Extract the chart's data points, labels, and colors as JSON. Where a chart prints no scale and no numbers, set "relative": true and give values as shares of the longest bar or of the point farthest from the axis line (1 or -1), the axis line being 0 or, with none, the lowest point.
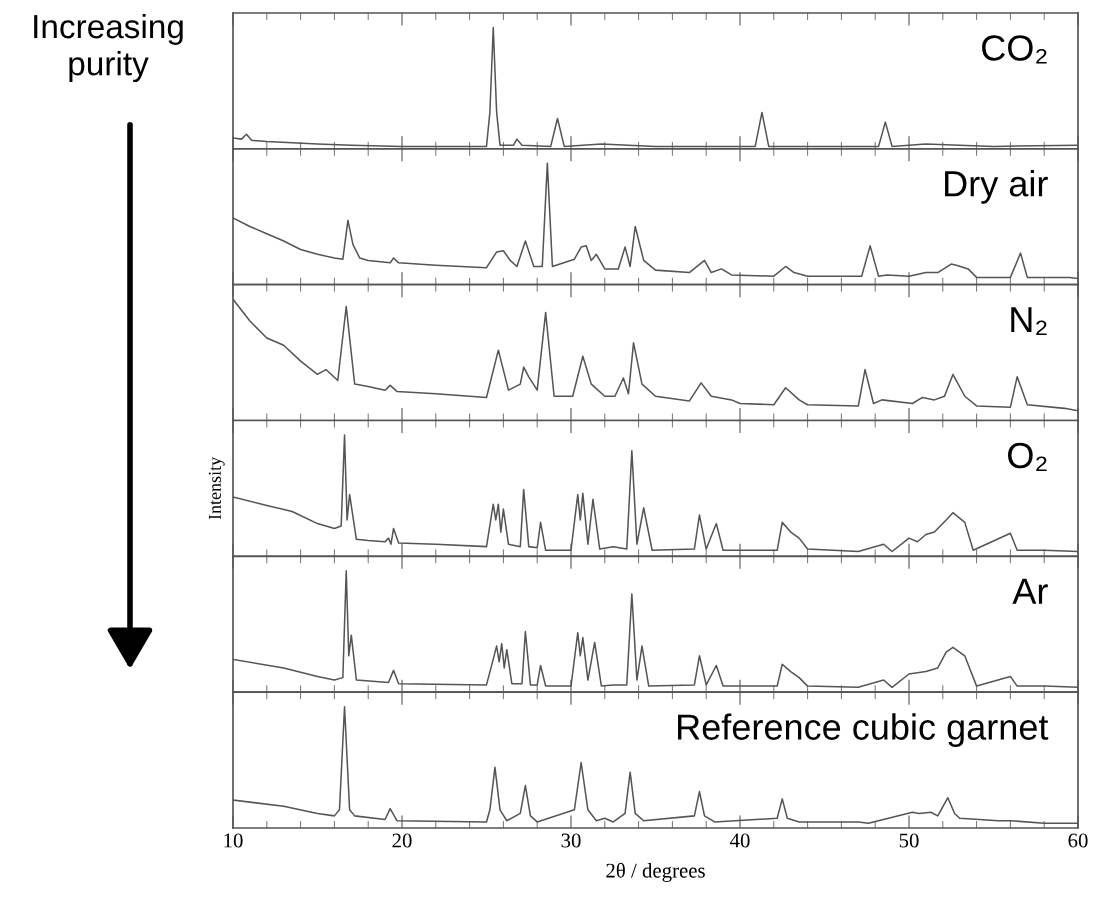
{
  "chart_data": [
    {
      "type": "line",
      "relative": true,
      "xlim": [
        10,
        60
      ],
      "xticks": [
        10,
        {
          "value": 12,
          "label": null
        },
        {
          "value": 14,
          "label": null
        },
        {
          "value": 16,
          "label": null
        },
        {
          "value": 18,
          "label": null
        },
        20,
        {
          "value": 22,
          "label": null
        },
        {
          "value": 24,
          "label": null
        },
        {
          "value": 26,
          "label": null
        },
        {
          "value": 28,
          "label": null
        },
        30,
        {
          "value": 32,
          "label": null
        },
        {
          "value": 34,
          "label": null
        },
        {
          "value": 36,
          "label": null
        },
        {
          "value": 38,
          "label": null
        },
        40,
        {
          "value": 42,
          "label": null
        },
        {
          "value": 44,
          "label": null
        },
        {
          "value": 46,
          "label": null
        },
        {
          "value": 48,
          "label": null
        },
        50,
        {
          "value": 52,
          "label": null
        },
        {
          "value": 54,
          "label": null
        },
        {
          "value": 56,
          "label": null
        },
        {
          "value": 58,
          "label": null
        },
        60
      ],
      "tick_labels": false,
      "annotations": [
        "Increasing purity"
      ],
      "series": [
        {
          "name": "CO₂",
          "color": "#555555",
          "x": [
            10,
            10.5,
            10.8,
            11.1,
            12,
            13.5,
            15,
            17,
            20,
            23,
            25.0,
            25.2,
            25.4,
            25.6,
            25.8,
            26.6,
            26.8,
            27.1,
            28.8,
            29.2,
            29.6,
            31.8,
            35,
            38,
            40.9,
            41.3,
            41.7,
            44,
            48.2,
            48.6,
            49,
            51,
            55,
            60
          ],
          "values": [
            0.09,
            0.08,
            0.12,
            0.07,
            0.06,
            0.05,
            0.04,
            0.03,
            0.02,
            0.02,
            0.02,
            0.3,
            1.0,
            0.3,
            0.03,
            0.03,
            0.08,
            0.03,
            0.02,
            0.25,
            0.02,
            0.04,
            0.02,
            0.02,
            0.02,
            0.3,
            0.02,
            0.02,
            0.02,
            0.22,
            0.02,
            0.04,
            0.02,
            0.03
          ]
        }
      ]
    },
    {
      "type": "line",
      "relative": true,
      "xlim": [
        10,
        60
      ],
      "xticks": [
        10,
        {
          "value": 12,
          "label": null
        },
        {
          "value": 14,
          "label": null
        },
        {
          "value": 16,
          "label": null
        },
        {
          "value": 18,
          "label": null
        },
        20,
        {
          "value": 22,
          "label": null
        },
        {
          "value": 24,
          "label": null
        },
        {
          "value": 26,
          "label": null
        },
        {
          "value": 28,
          "label": null
        },
        30,
        {
          "value": 32,
          "label": null
        },
        {
          "value": 34,
          "label": null
        },
        {
          "value": 36,
          "label": null
        },
        {
          "value": 38,
          "label": null
        },
        40,
        {
          "value": 42,
          "label": null
        },
        {
          "value": 44,
          "label": null
        },
        {
          "value": 46,
          "label": null
        },
        {
          "value": 48,
          "label": null
        },
        50,
        {
          "value": 52,
          "label": null
        },
        {
          "value": 54,
          "label": null
        },
        {
          "value": 56,
          "label": null
        },
        {
          "value": 58,
          "label": null
        },
        60
      ],
      "tick_labels": false,
      "series": [
        {
          "name": "Dry air",
          "color": "#555555",
          "x": [
            10,
            11,
            12,
            13,
            14,
            15,
            16,
            16.5,
            16.8,
            17.1,
            17.5,
            18,
            19.3,
            19.5,
            19.8,
            22,
            25,
            25.6,
            26,
            26.4,
            26.8,
            27.3,
            27.8,
            28.3,
            28.6,
            28.9,
            30.2,
            30.6,
            30.9,
            31.2,
            31.5,
            32,
            32.8,
            33.2,
            33.5,
            33.8,
            34.3,
            35,
            37,
            37.9,
            38.3,
            38.9,
            39.5,
            42,
            42.7,
            43.2,
            44,
            47.2,
            47.7,
            48.2,
            48.7,
            50,
            51,
            51.7,
            52.5,
            52.8,
            53.5,
            54,
            56,
            56.6,
            57,
            59.5,
            60
          ],
          "values": [
            0.55,
            0.48,
            0.42,
            0.36,
            0.29,
            0.25,
            0.22,
            0.21,
            0.53,
            0.33,
            0.22,
            0.2,
            0.18,
            0.22,
            0.18,
            0.16,
            0.14,
            0.27,
            0.28,
            0.2,
            0.15,
            0.36,
            0.15,
            0.15,
            1.0,
            0.15,
            0.21,
            0.31,
            0.32,
            0.2,
            0.25,
            0.13,
            0.13,
            0.31,
            0.15,
            0.48,
            0.2,
            0.12,
            0.1,
            0.2,
            0.1,
            0.13,
            0.08,
            0.07,
            0.15,
            0.1,
            0.07,
            0.07,
            0.32,
            0.07,
            0.08,
            0.07,
            0.1,
            0.1,
            0.17,
            0.16,
            0.13,
            0.06,
            0.06,
            0.26,
            0.06,
            0.06,
            0.05
          ]
        }
      ]
    },
    {
      "type": "line",
      "relative": true,
      "xlim": [
        10,
        60
      ],
      "xticks": [
        10,
        {
          "value": 12,
          "label": null
        },
        {
          "value": 14,
          "label": null
        },
        {
          "value": 16,
          "label": null
        },
        {
          "value": 18,
          "label": null
        },
        20,
        {
          "value": 22,
          "label": null
        },
        {
          "value": 24,
          "label": null
        },
        {
          "value": 26,
          "label": null
        },
        {
          "value": 28,
          "label": null
        },
        30,
        {
          "value": 32,
          "label": null
        },
        {
          "value": 34,
          "label": null
        },
        {
          "value": 36,
          "label": null
        },
        {
          "value": 38,
          "label": null
        },
        40,
        {
          "value": 42,
          "label": null
        },
        {
          "value": 44,
          "label": null
        },
        {
          "value": 46,
          "label": null
        },
        {
          "value": 48,
          "label": null
        },
        50,
        {
          "value": 52,
          "label": null
        },
        {
          "value": 54,
          "label": null
        },
        {
          "value": 56,
          "label": null
        },
        {
          "value": 58,
          "label": null
        },
        60
      ],
      "tick_labels": false,
      "series": [
        {
          "name": "N₂",
          "color": "#555555",
          "x": [
            10,
            11,
            12,
            13,
            14,
            15,
            15.5,
            16.2,
            16.7,
            17.2,
            18,
            19.0,
            19.3,
            19.7,
            22,
            25,
            25.7,
            26.3,
            27.0,
            27.2,
            27.5,
            28,
            28.5,
            29,
            30.1,
            30.7,
            31.2,
            32,
            32.6,
            33.1,
            33.4,
            33.7,
            34.2,
            35,
            37,
            37.7,
            38.3,
            39.5,
            40,
            42,
            42.7,
            43.5,
            44,
            47,
            47.4,
            47.9,
            48.4,
            50.2,
            50.8,
            51.5,
            52.1,
            52.6,
            53.3,
            54,
            56,
            56.4,
            57,
            59.2,
            60
          ],
          "values": [
            1.0,
            0.82,
            0.68,
            0.62,
            0.49,
            0.38,
            0.42,
            0.33,
            0.94,
            0.3,
            0.28,
            0.25,
            0.29,
            0.24,
            0.22,
            0.19,
            0.58,
            0.25,
            0.3,
            0.44,
            0.36,
            0.25,
            0.89,
            0.2,
            0.2,
            0.53,
            0.3,
            0.2,
            0.2,
            0.35,
            0.22,
            0.64,
            0.3,
            0.2,
            0.16,
            0.31,
            0.2,
            0.17,
            0.14,
            0.13,
            0.27,
            0.17,
            0.13,
            0.12,
            0.42,
            0.14,
            0.17,
            0.14,
            0.19,
            0.17,
            0.2,
            0.38,
            0.2,
            0.12,
            0.11,
            0.36,
            0.13,
            0.1,
            0.08
          ]
        }
      ]
    },
    {
      "type": "line",
      "relative": true,
      "xlim": [
        10,
        60
      ],
      "xticks": [
        10,
        {
          "value": 12,
          "label": null
        },
        {
          "value": 14,
          "label": null
        },
        {
          "value": 16,
          "label": null
        },
        {
          "value": 18,
          "label": null
        },
        20,
        {
          "value": 22,
          "label": null
        },
        {
          "value": 24,
          "label": null
        },
        {
          "value": 26,
          "label": null
        },
        {
          "value": 28,
          "label": null
        },
        30,
        {
          "value": 32,
          "label": null
        },
        {
          "value": 34,
          "label": null
        },
        {
          "value": 36,
          "label": null
        },
        {
          "value": 38,
          "label": null
        },
        40,
        {
          "value": 42,
          "label": null
        },
        {
          "value": 44,
          "label": null
        },
        {
          "value": 46,
          "label": null
        },
        {
          "value": 48,
          "label": null
        },
        50,
        {
          "value": 52,
          "label": null
        },
        {
          "value": 54,
          "label": null
        },
        {
          "value": 56,
          "label": null
        },
        {
          "value": 58,
          "label": null
        },
        60
      ],
      "tick_labels": false,
      "ylabel": "Intensity",
      "series": [
        {
          "name": "O₂",
          "color": "#555555",
          "x": [
            10,
            12,
            13.5,
            15,
            16,
            16.4,
            16.6,
            16.75,
            16.9,
            17.3,
            18,
            19,
            19.2,
            19.35,
            19.5,
            19.8,
            22,
            25,
            25.4,
            25.55,
            25.7,
            25.85,
            26,
            26.3,
            27.0,
            27.2,
            27.5,
            28.0,
            28.2,
            28.5,
            30,
            30.4,
            30.55,
            30.7,
            31.0,
            31.3,
            31.7,
            32.5,
            33.3,
            33.6,
            33.9,
            34.3,
            34.8,
            37.3,
            37.6,
            38.0,
            38.6,
            39,
            42.2,
            42.5,
            43,
            43.5,
            44,
            47,
            48.5,
            49,
            50,
            50.5,
            51,
            51.5,
            52.2,
            52.6,
            53.3,
            53.8,
            56,
            56.4,
            58,
            60
          ],
          "values": [
            0.49,
            0.42,
            0.37,
            0.27,
            0.23,
            0.25,
            1.0,
            0.3,
            0.51,
            0.14,
            0.13,
            0.12,
            0.15,
            0.1,
            0.23,
            0.11,
            0.1,
            0.08,
            0.43,
            0.3,
            0.43,
            0.2,
            0.39,
            0.1,
            0.08,
            0.55,
            0.08,
            0.07,
            0.28,
            0.05,
            0.05,
            0.51,
            0.3,
            0.52,
            0.1,
            0.47,
            0.06,
            0.08,
            0.06,
            0.87,
            0.1,
            0.4,
            0.05,
            0.06,
            0.34,
            0.06,
            0.27,
            0.05,
            0.05,
            0.28,
            0.2,
            0.15,
            0.06,
            0.04,
            0.1,
            0.04,
            0.15,
            0.12,
            0.18,
            0.2,
            0.3,
            0.36,
            0.28,
            0.05,
            0.19,
            0.05,
            0.05,
            0.04
          ]
        }
      ]
    },
    {
      "type": "line",
      "relative": true,
      "xlim": [
        10,
        60
      ],
      "xticks": [
        10,
        {
          "value": 12,
          "label": null
        },
        {
          "value": 14,
          "label": null
        },
        {
          "value": 16,
          "label": null
        },
        {
          "value": 18,
          "label": null
        },
        20,
        {
          "value": 22,
          "label": null
        },
        {
          "value": 24,
          "label": null
        },
        {
          "value": 26,
          "label": null
        },
        {
          "value": 28,
          "label": null
        },
        30,
        {
          "value": 32,
          "label": null
        },
        {
          "value": 34,
          "label": null
        },
        {
          "value": 36,
          "label": null
        },
        {
          "value": 38,
          "label": null
        },
        40,
        {
          "value": 42,
          "label": null
        },
        {
          "value": 44,
          "label": null
        },
        {
          "value": 46,
          "label": null
        },
        {
          "value": 48,
          "label": null
        },
        50,
        {
          "value": 52,
          "label": null
        },
        {
          "value": 54,
          "label": null
        },
        {
          "value": 56,
          "label": null
        },
        {
          "value": 58,
          "label": null
        },
        60
      ],
      "tick_labels": false,
      "series": [
        {
          "name": "Ar",
          "color": "#555555",
          "x": [
            10,
            13,
            15,
            16,
            16.5,
            16.7,
            16.85,
            17.0,
            17.3,
            19.2,
            19.5,
            19.8,
            25,
            25.6,
            25.75,
            25.9,
            26.05,
            26.2,
            26.5,
            27.1,
            27.3,
            27.6,
            28.0,
            28.2,
            28.5,
            30,
            30.4,
            30.55,
            30.7,
            31.0,
            31.4,
            31.8,
            32.5,
            33.3,
            33.6,
            33.9,
            34.2,
            34.6,
            37.3,
            37.6,
            38.0,
            38.6,
            39,
            42.2,
            42.5,
            43,
            43.5,
            44,
            47,
            48.5,
            49,
            50,
            51,
            51.7,
            52.2,
            52.6,
            53.3,
            54,
            56,
            56.4,
            58,
            60
          ],
          "values": [
            0.27,
            0.2,
            0.13,
            0.1,
            0.12,
            1.0,
            0.3,
            0.47,
            0.1,
            0.08,
            0.18,
            0.07,
            0.06,
            0.38,
            0.25,
            0.4,
            0.2,
            0.35,
            0.07,
            0.07,
            0.5,
            0.06,
            0.06,
            0.22,
            0.05,
            0.05,
            0.49,
            0.3,
            0.45,
            0.1,
            0.41,
            0.05,
            0.06,
            0.06,
            0.81,
            0.1,
            0.38,
            0.05,
            0.06,
            0.3,
            0.06,
            0.22,
            0.05,
            0.05,
            0.23,
            0.17,
            0.12,
            0.05,
            0.04,
            0.1,
            0.04,
            0.15,
            0.17,
            0.2,
            0.33,
            0.37,
            0.3,
            0.05,
            0.13,
            0.05,
            0.05,
            0.04
          ]
        }
      ]
    },
    {
      "type": "line",
      "relative": true,
      "xlim": [
        10,
        60
      ],
      "xticks": [
        10,
        {
          "value": 12,
          "label": null
        },
        {
          "value": 14,
          "label": null
        },
        {
          "value": 16,
          "label": null
        },
        {
          "value": 18,
          "label": null
        },
        20,
        {
          "value": 22,
          "label": null
        },
        {
          "value": 24,
          "label": null
        },
        {
          "value": 26,
          "label": null
        },
        {
          "value": 28,
          "label": null
        },
        30,
        {
          "value": 32,
          "label": null
        },
        {
          "value": 34,
          "label": null
        },
        {
          "value": 36,
          "label": null
        },
        {
          "value": 38,
          "label": null
        },
        40,
        {
          "value": 42,
          "label": null
        },
        {
          "value": 44,
          "label": null
        },
        {
          "value": 46,
          "label": null
        },
        {
          "value": 48,
          "label": null
        },
        50,
        {
          "value": 52,
          "label": null
        },
        {
          "value": 54,
          "label": null
        },
        {
          "value": 56,
          "label": null
        },
        {
          "value": 58,
          "label": null
        },
        60
      ],
      "tick_labels": "x",
      "xlabel": "2θ / degrees",
      "series": [
        {
          "name": "Reference cubic garnet",
          "color": "#555555",
          "x": [
            10,
            13,
            15,
            16,
            16.3,
            16.6,
            16.9,
            17.2,
            19.0,
            19.3,
            19.7,
            25,
            25.2,
            25.5,
            25.8,
            26.2,
            27.0,
            27.3,
            27.6,
            28,
            30.2,
            30.6,
            31.0,
            31.5,
            32,
            32.5,
            33.2,
            33.5,
            33.8,
            34.3,
            37.3,
            37.6,
            37.9,
            38.5,
            42.2,
            42.5,
            42.8,
            43.5,
            47,
            47.6,
            50.2,
            50.6,
            51.3,
            51.7,
            52.3,
            52.7,
            53,
            55.3,
            56,
            58,
            60
          ],
          "values": [
            0.23,
            0.18,
            0.12,
            0.1,
            0.15,
            1.0,
            0.15,
            0.1,
            0.07,
            0.16,
            0.06,
            0.05,
            0.15,
            0.5,
            0.15,
            0.06,
            0.12,
            0.35,
            0.1,
            0.05,
            0.15,
            0.54,
            0.15,
            0.06,
            0.08,
            0.05,
            0.12,
            0.46,
            0.12,
            0.06,
            0.1,
            0.3,
            0.1,
            0.05,
            0.08,
            0.24,
            0.08,
            0.05,
            0.05,
            0.04,
            0.13,
            0.12,
            0.13,
            0.1,
            0.25,
            0.12,
            0.08,
            0.06,
            0.06,
            0.04,
            0.04
          ]
        }
      ]
    }
  ]
}
